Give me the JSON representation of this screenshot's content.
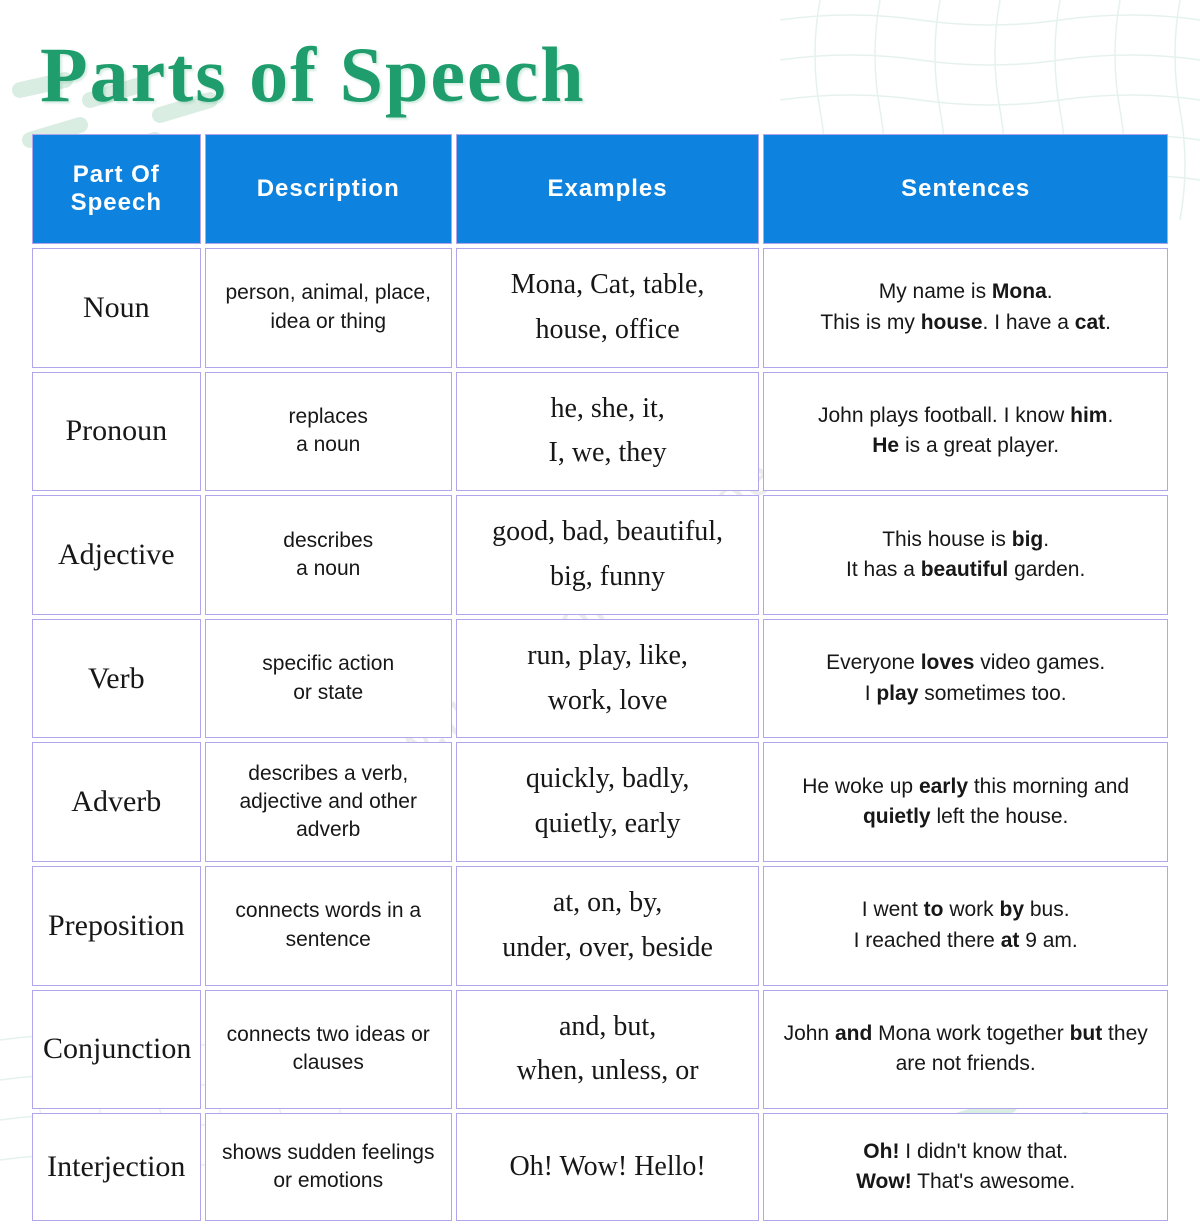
{
  "page": {
    "title": "Parts of Speech",
    "title_color": "#1f9d6d",
    "title_font_size_pt": 58,
    "watermark": "www.firstenglishgrade.com",
    "background_color": "#ffffff"
  },
  "decoration": {
    "grid_stroke": "#b7dcc9",
    "dash_stroke": "#b7dcc9",
    "dash_stroke_width": 16
  },
  "table": {
    "header_bg": "#0d82de",
    "header_text_color": "#ffffff",
    "cell_bg": "#ffffff",
    "border_color": "#b1a5ec",
    "header_font_size_pt": 18,
    "body_font_size_pt": 16,
    "column_widths_pct": [
      15,
      22,
      27,
      36
    ],
    "columns": [
      "Part Of Speech",
      "Description",
      "Examples",
      "Sentences"
    ],
    "rows": [
      {
        "pos": "Noun",
        "desc": "person, animal, place, idea  or thing",
        "ex_line1": "Mona, Cat, table,",
        "ex_line2": "house, office",
        "sent_html": "My name is <b>Mona</b>.<br>This is my <b>house</b>. I have a <b>cat</b>."
      },
      {
        "pos": "Pronoun",
        "desc": "replaces<br>a noun",
        "ex_line1": "he, she, it,",
        "ex_line2": "I, we, they",
        "sent_html": "John plays football. I know <b>him</b>.<br><b>He</b> is a great player."
      },
      {
        "pos": "Adjective",
        "desc": "describes<br>a noun",
        "ex_line1": "good, bad, beautiful,",
        "ex_line2": "big, funny",
        "sent_html": "This house is <b>big</b>.<br>It has a <b>beautiful</b> garden."
      },
      {
        "pos": "Verb",
        "desc": "specific action<br>or state",
        "ex_line1": "run, play, like,",
        "ex_line2": "work, love",
        "sent_html": "Everyone <b>loves</b> video games.<br>I <b>play</b> sometimes too."
      },
      {
        "pos": "Adverb",
        "desc": "describes a verb, adjective and other adverb",
        "ex_line1": "quickly, badly,",
        "ex_line2": "quietly, early",
        "sent_html": "He woke up <b>early</b> this morning and <b>quietly</b> left the house."
      },
      {
        "pos": "Preposition",
        "desc": "connects words in a sentence",
        "ex_line1": "at, on, by,",
        "ex_line2": "under, over, beside",
        "sent_html": "I went <b>to</b> work <b>by</b> bus.<br>I reached there <b>at</b> 9 am."
      },
      {
        "pos": "Conjunction",
        "desc": "connects two ideas or clauses",
        "ex_line1": "and, but,",
        "ex_line2": "when, unless, or",
        "sent_html": "John <b>and</b> Mona work together <b>but</b> they are not friends."
      },
      {
        "pos": "Interjection",
        "desc": "shows sudden feelings or emotions",
        "ex_line1": "Oh! Wow! Hello!",
        "ex_line2": "",
        "sent_html": "<b>Oh!</b> I didn't know that.<br><b>Wow!</b> That's awesome."
      }
    ]
  }
}
